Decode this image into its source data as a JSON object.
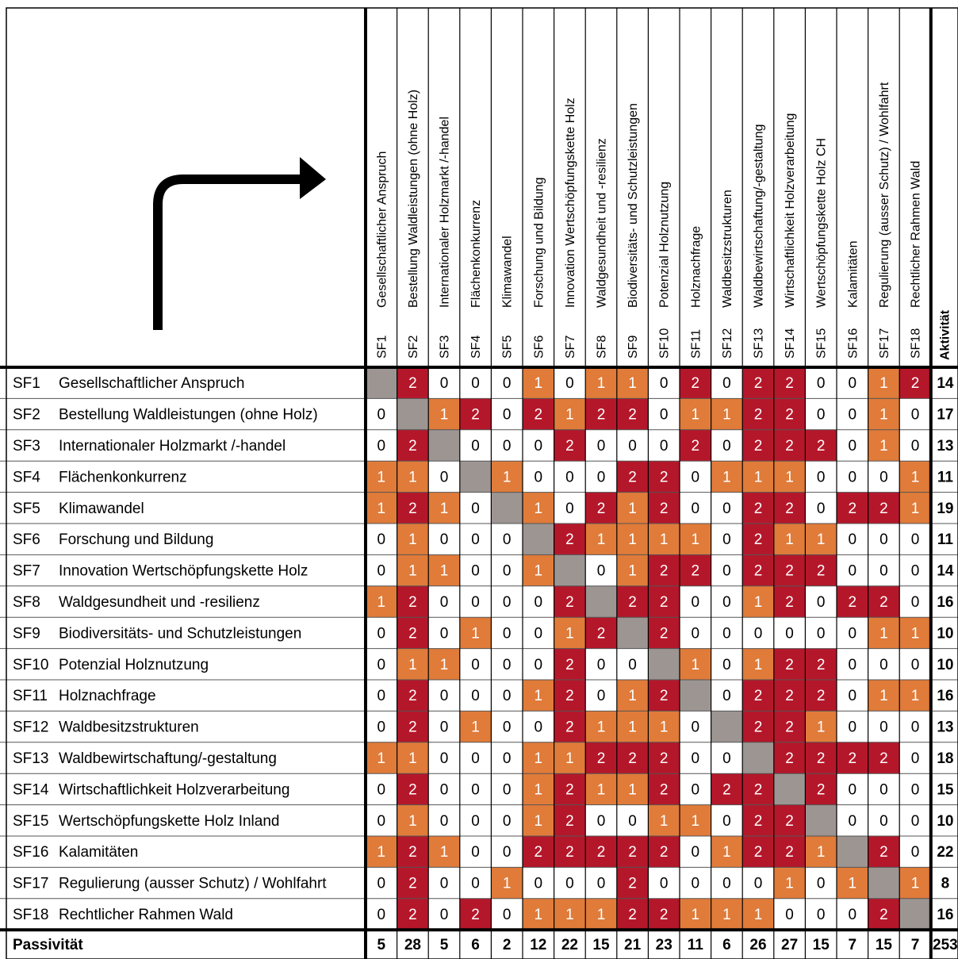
{
  "colors": {
    "zero": "#ffffff",
    "one": "#e07b39",
    "two": "#b5172a",
    "diagonal": "#9c9592",
    "grid": "#000000"
  },
  "icons": {
    "corner": "bent-arrow-right-icon"
  },
  "columns": [
    {
      "code": "SF1",
      "label": "Gesellschaftlicher Anspruch"
    },
    {
      "code": "SF2",
      "label": "Bestellung Waldleistungen (ohne Holz)"
    },
    {
      "code": "SF3",
      "label": "Internationaler Holzmarkt /-handel"
    },
    {
      "code": "SF4",
      "label": "Flächenkonkurrenz"
    },
    {
      "code": "SF5",
      "label": "Klimawandel"
    },
    {
      "code": "SF6",
      "label": "Forschung und Bildung"
    },
    {
      "code": "SF7",
      "label": "Innovation Wertschöpfungskette Holz"
    },
    {
      "code": "SF8",
      "label": "Waldgesundheit und -resilienz"
    },
    {
      "code": "SF9",
      "label": "Biodiversitäts- und Schutzleistungen"
    },
    {
      "code": "SF10",
      "label": "Potenzial Holznutzung"
    },
    {
      "code": "SF11",
      "label": "Holznachfrage"
    },
    {
      "code": "SF12",
      "label": "Waldbesitzstrukturen"
    },
    {
      "code": "SF13",
      "label": "Waldbewirtschaftung/-gestaltung"
    },
    {
      "code": "SF14",
      "label": "Wirtschaftlichkeit Holzverarbeitung"
    },
    {
      "code": "SF15",
      "label": "Wertschöpfungskette Holz CH"
    },
    {
      "code": "SF16",
      "label": "Kalamitäten"
    },
    {
      "code": "SF17",
      "label": "Regulierung (ausser Schutz) / Wohlfahrt"
    },
    {
      "code": "SF18",
      "label": "Rechtlicher Rahmen Wald"
    }
  ],
  "rows": [
    {
      "code": "SF1",
      "label": "Gesellschaftlicher Anspruch"
    },
    {
      "code": "SF2",
      "label": "Bestellung Waldleistungen (ohne Holz)"
    },
    {
      "code": "SF3",
      "label": "Internationaler Holzmarkt /-handel"
    },
    {
      "code": "SF4",
      "label": "Flächenkonkurrenz"
    },
    {
      "code": "SF5",
      "label": "Klimawandel"
    },
    {
      "code": "SF6",
      "label": "Forschung und Bildung"
    },
    {
      "code": "SF7",
      "label": "Innovation Wertschöpfungskette Holz"
    },
    {
      "code": "SF8",
      "label": "Waldgesundheit und -resilienz"
    },
    {
      "code": "SF9",
      "label": "Biodiversitäts- und Schutzleistungen"
    },
    {
      "code": "SF10",
      "label": "Potenzial Holznutzung"
    },
    {
      "code": "SF11",
      "label": "Holznachfrage"
    },
    {
      "code": "SF12",
      "label": "Waldbesitzstrukturen"
    },
    {
      "code": "SF13",
      "label": "Waldbewirtschaftung/-gestaltung"
    },
    {
      "code": "SF14",
      "label": "Wirtschaftlichkeit Holzverarbeitung"
    },
    {
      "code": "SF15",
      "label": "Wertschöpfungskette Holz Inland"
    },
    {
      "code": "SF16",
      "label": "Kalamitäten"
    },
    {
      "code": "SF17",
      "label": "Regulierung (ausser Schutz) / Wohlfahrt"
    },
    {
      "code": "SF18",
      "label": "Rechtlicher Rahmen Wald"
    }
  ],
  "chart_data": {
    "type": "heatmap",
    "title": "",
    "row_total_label": "Aktivität",
    "col_total_label": "Passivität",
    "values": [
      [
        null,
        2,
        0,
        0,
        0,
        1,
        0,
        1,
        1,
        0,
        2,
        0,
        2,
        2,
        0,
        0,
        1,
        2
      ],
      [
        0,
        null,
        1,
        2,
        0,
        2,
        1,
        2,
        2,
        0,
        1,
        1,
        2,
        2,
        0,
        0,
        1,
        0
      ],
      [
        0,
        2,
        null,
        0,
        0,
        0,
        2,
        0,
        0,
        0,
        2,
        0,
        2,
        2,
        2,
        0,
        1,
        0
      ],
      [
        1,
        1,
        0,
        null,
        1,
        0,
        0,
        0,
        2,
        2,
        0,
        1,
        1,
        1,
        0,
        0,
        0,
        1
      ],
      [
        1,
        2,
        1,
        0,
        null,
        1,
        0,
        2,
        1,
        2,
        0,
        0,
        2,
        2,
        0,
        2,
        2,
        1
      ],
      [
        0,
        1,
        0,
        0,
        0,
        null,
        2,
        1,
        1,
        1,
        1,
        0,
        2,
        1,
        1,
        0,
        0,
        0
      ],
      [
        0,
        1,
        1,
        0,
        0,
        1,
        null,
        0,
        1,
        2,
        2,
        0,
        2,
        2,
        2,
        0,
        0,
        0
      ],
      [
        1,
        2,
        0,
        0,
        0,
        0,
        2,
        null,
        2,
        2,
        0,
        0,
        1,
        2,
        0,
        2,
        2,
        0
      ],
      [
        0,
        2,
        0,
        1,
        0,
        0,
        1,
        2,
        null,
        2,
        0,
        0,
        0,
        0,
        0,
        0,
        1,
        1
      ],
      [
        0,
        1,
        1,
        0,
        0,
        0,
        2,
        0,
        0,
        null,
        1,
        0,
        1,
        2,
        2,
        0,
        0,
        0
      ],
      [
        0,
        2,
        0,
        0,
        0,
        1,
        2,
        0,
        1,
        2,
        null,
        0,
        2,
        2,
        2,
        0,
        1,
        1
      ],
      [
        0,
        2,
        0,
        1,
        0,
        0,
        2,
        1,
        1,
        1,
        0,
        null,
        2,
        2,
        1,
        0,
        0,
        0
      ],
      [
        1,
        1,
        0,
        0,
        0,
        1,
        1,
        2,
        2,
        2,
        0,
        0,
        null,
        2,
        2,
        2,
        2,
        0
      ],
      [
        0,
        2,
        0,
        0,
        0,
        1,
        2,
        1,
        1,
        2,
        0,
        2,
        2,
        null,
        2,
        0,
        0,
        0
      ],
      [
        0,
        1,
        0,
        0,
        0,
        1,
        2,
        0,
        0,
        1,
        1,
        0,
        2,
        2,
        null,
        0,
        0,
        0
      ],
      [
        1,
        2,
        1,
        0,
        0,
        2,
        2,
        2,
        2,
        2,
        0,
        1,
        2,
        2,
        1,
        null,
        2,
        0
      ],
      [
        0,
        2,
        0,
        0,
        1,
        0,
        0,
        0,
        2,
        0,
        0,
        0,
        0,
        1,
        0,
        1,
        null,
        1
      ],
      [
        0,
        2,
        0,
        2,
        0,
        1,
        1,
        1,
        2,
        2,
        1,
        1,
        1,
        0,
        0,
        0,
        2,
        null
      ]
    ],
    "row_totals": [
      14,
      17,
      13,
      11,
      19,
      11,
      14,
      16,
      10,
      10,
      16,
      13,
      18,
      15,
      10,
      22,
      8,
      16
    ],
    "col_totals": [
      5,
      28,
      5,
      6,
      2,
      12,
      22,
      15,
      21,
      23,
      11,
      6,
      26,
      27,
      15,
      7,
      15,
      7
    ],
    "grand_total": 253
  }
}
